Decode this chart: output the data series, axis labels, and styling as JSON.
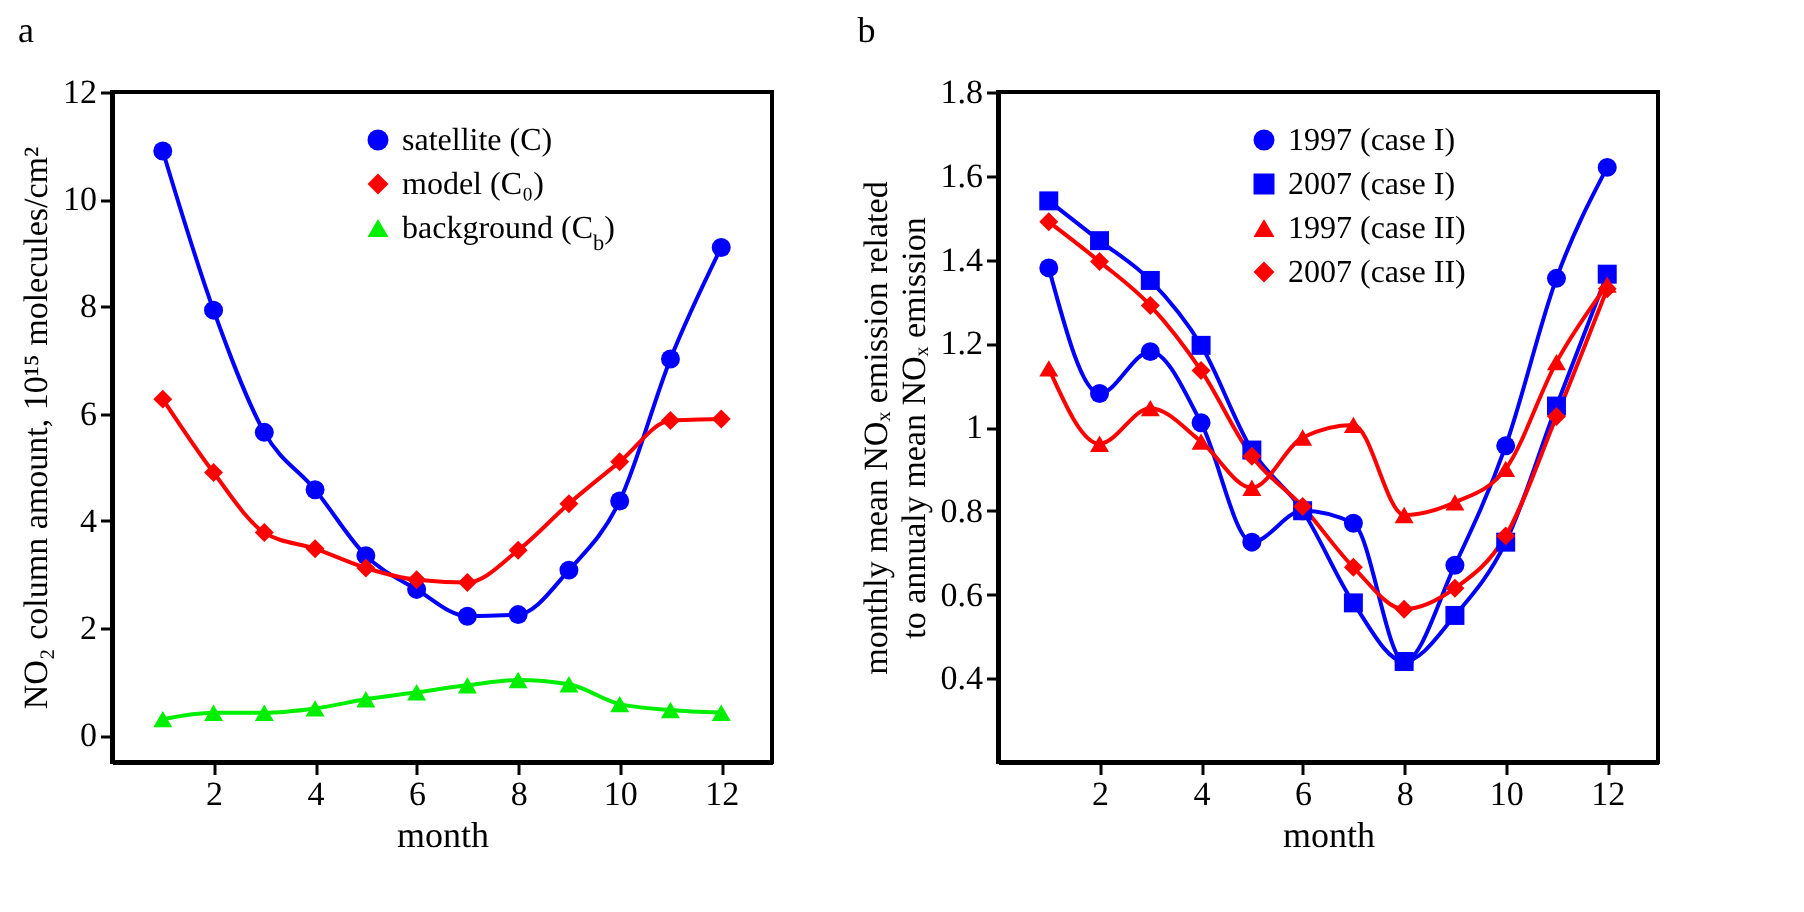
{
  "chart_data": [
    {
      "type": "line",
      "title": "a",
      "xlabel": "month",
      "ylabel": "NO₂ column amount, 10¹⁵ molecules/cm²",
      "x": [
        1,
        2,
        3,
        4,
        5,
        6,
        7,
        8,
        9,
        10,
        11,
        12
      ],
      "xlim": [
        0,
        13
      ],
      "xticks": [
        2,
        4,
        6,
        8,
        10,
        12
      ],
      "ylim": [
        -0.5,
        12
      ],
      "yticks": [
        0,
        2,
        4,
        6,
        8,
        10,
        12
      ],
      "grid": false,
      "legend": "top right",
      "series": [
        {
          "name": "satellite (C)",
          "color": "#0000ff",
          "marker": "circle",
          "values": [
            10.9,
            7.93,
            5.65,
            4.58,
            3.35,
            2.72,
            2.22,
            2.25,
            3.08,
            4.37,
            7.02,
            9.1
          ]
        },
        {
          "name": "model (C₀)",
          "color": "#ff0000",
          "marker": "diamond",
          "values": [
            6.27,
            4.9,
            3.78,
            3.48,
            3.12,
            2.9,
            2.85,
            3.45,
            4.32,
            5.1,
            5.87,
            5.9
          ]
        },
        {
          "name": "background (C$_{b}$)",
          "color": "#00ee00",
          "marker": "triangle",
          "values": [
            0.3,
            0.42,
            0.42,
            0.5,
            0.67,
            0.8,
            0.93,
            1.03,
            0.95,
            0.58,
            0.47,
            0.42
          ]
        }
      ]
    },
    {
      "type": "line",
      "title": "b",
      "xlabel": "month",
      "ylabel": "monthly mean NOₓ emission related\nto annualy mean NOₓ emission",
      "x": [
        1,
        2,
        3,
        4,
        5,
        6,
        7,
        8,
        9,
        10,
        11,
        12
      ],
      "xlim": [
        0,
        13
      ],
      "xticks": [
        2,
        4,
        6,
        8,
        10,
        12
      ],
      "ylim": [
        0.2,
        1.8
      ],
      "yticks": [
        0.4,
        0.6,
        0.8,
        1,
        1.2,
        1.4,
        1.6,
        1.8
      ],
      "grid": false,
      "legend": "top right",
      "series": [
        {
          "name": "1997 (case I)",
          "color": "#0000ff",
          "marker": "circle",
          "values": [
            1.38,
            1.08,
            1.18,
            1.01,
            0.725,
            0.8,
            0.77,
            0.44,
            0.67,
            0.955,
            1.355,
            1.62
          ]
        },
        {
          "name": "2007 (case I)",
          "color": "#0000ff",
          "marker": "square",
          "values": [
            1.54,
            1.445,
            1.35,
            1.195,
            0.945,
            0.8,
            0.58,
            0.44,
            0.55,
            0.725,
            1.05,
            1.365
          ]
        },
        {
          "name": "1997 (case II)",
          "color": "#ff0000",
          "marker": "triangle",
          "values": [
            1.14,
            0.96,
            1.045,
            0.965,
            0.855,
            0.975,
            1.005,
            0.79,
            0.82,
            0.9,
            1.155,
            1.34
          ]
        },
        {
          "name": "2007 (case II)",
          "color": "#ff0000",
          "marker": "diamond",
          "values": [
            1.49,
            1.395,
            1.29,
            1.135,
            0.93,
            0.81,
            0.665,
            0.565,
            0.615,
            0.74,
            1.025,
            1.33
          ]
        }
      ]
    }
  ]
}
